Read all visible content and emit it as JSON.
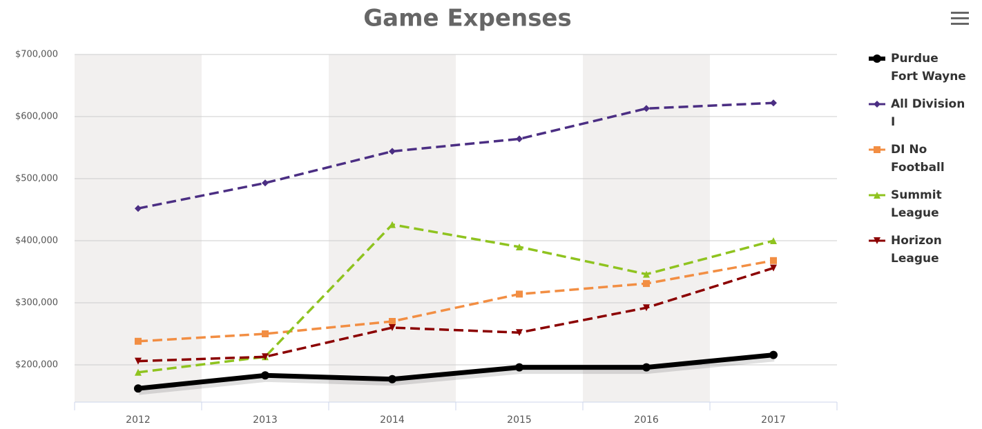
{
  "chart_data": {
    "type": "line",
    "title": "Game Expenses",
    "categories": [
      "2012",
      "2013",
      "2014",
      "2015",
      "2016",
      "2017"
    ],
    "ylim": [
      140000,
      700000
    ],
    "yticks": [
      {
        "value": 200000,
        "label": "$200,000"
      },
      {
        "value": 300000,
        "label": "$300,000"
      },
      {
        "value": 400000,
        "label": "$400,000"
      },
      {
        "value": 500000,
        "label": "$500,000"
      },
      {
        "value": 600000,
        "label": "$600,000"
      },
      {
        "value": 700000,
        "label": "$700,000"
      }
    ],
    "grid": true,
    "legend": "right",
    "series": [
      {
        "name": "Purdue Fort Wayne",
        "color": "#000000",
        "marker": "circle",
        "dashed": false,
        "values": [
          162000,
          183000,
          177000,
          196000,
          196000,
          216000
        ]
      },
      {
        "name": "All Division I",
        "color": "#4b2e83",
        "marker": "diamond",
        "dashed": true,
        "values": [
          452000,
          493000,
          544000,
          564000,
          613000,
          622000
        ]
      },
      {
        "name": "DI No Football",
        "color": "#f28e43",
        "marker": "square",
        "dashed": true,
        "values": [
          238000,
          250000,
          270000,
          314000,
          331000,
          368000
        ]
      },
      {
        "name": "Summit League",
        "color": "#8fc31f",
        "marker": "triangle",
        "dashed": true,
        "values": [
          188000,
          213000,
          426000,
          390000,
          346000,
          400000
        ]
      },
      {
        "name": "Horizon League",
        "color": "#8b0000",
        "marker": "triangle-down",
        "dashed": true,
        "values": [
          206000,
          213000,
          260000,
          252000,
          292000,
          356000
        ]
      }
    ]
  }
}
